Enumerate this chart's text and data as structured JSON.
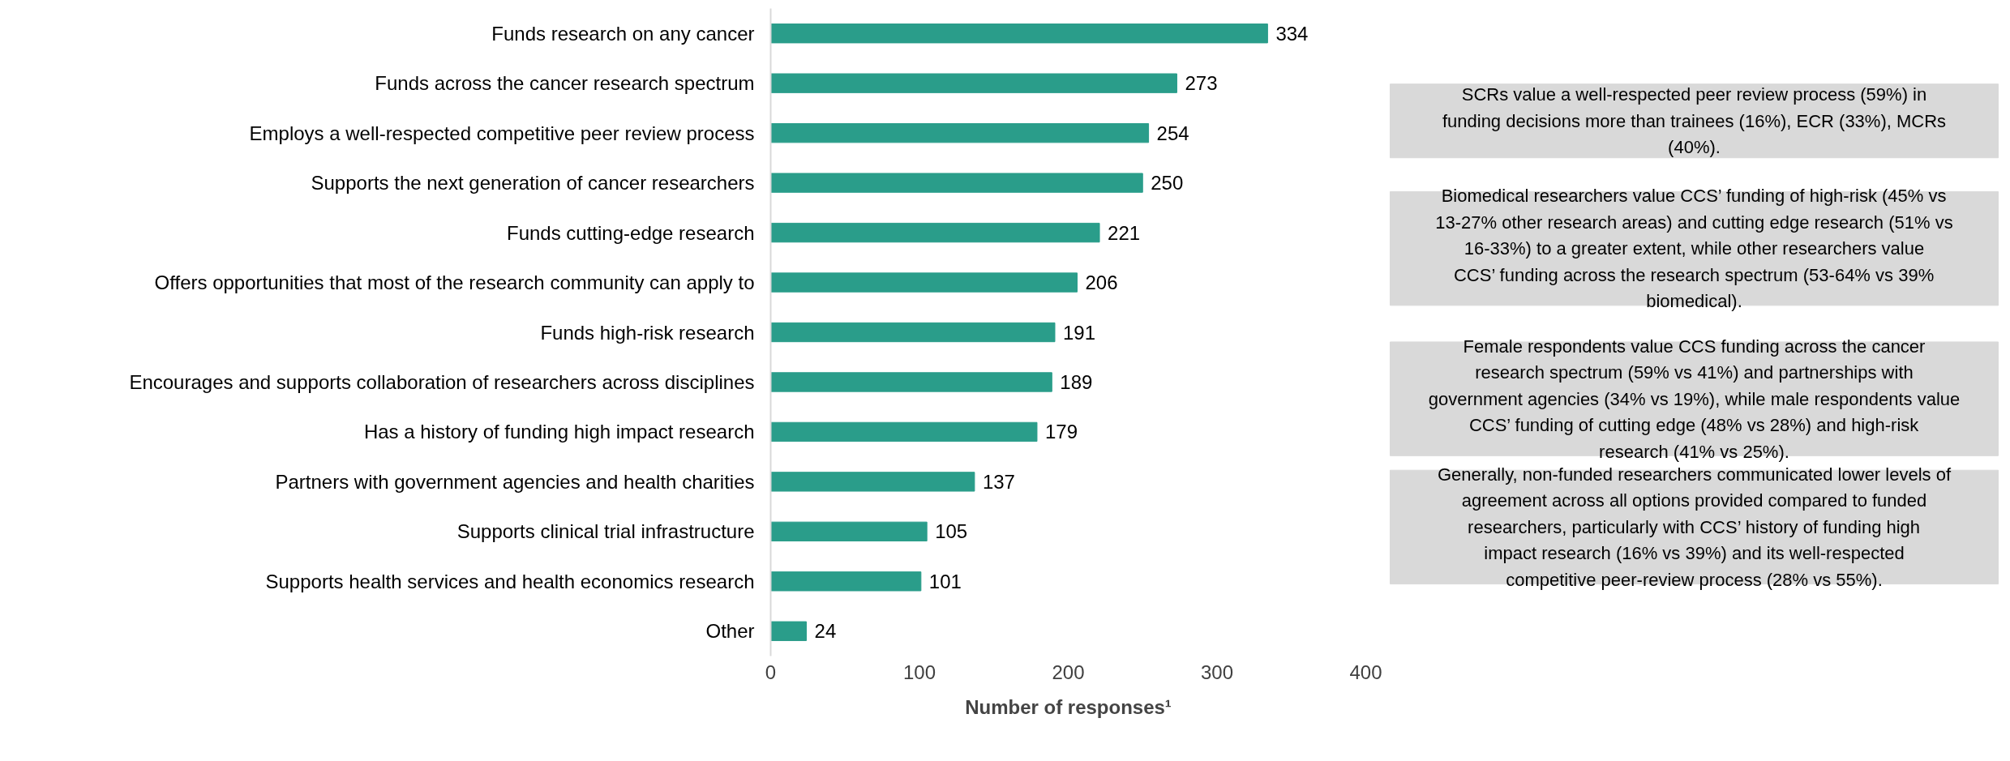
{
  "chart_data": {
    "type": "bar",
    "orientation": "horizontal",
    "xlabel": "Number of responses¹",
    "categories": [
      "Funds research on any cancer",
      "Funds across the cancer research spectrum",
      "Employs a well-respected competitive peer review process",
      "Supports the next generation of cancer researchers",
      "Funds cutting-edge research",
      "Offers opportunities that most of the research community can apply to",
      "Funds high-risk research",
      "Encourages and supports collaboration of researchers across disciplines",
      "Has a history of funding high impact research",
      "Partners with government agencies and health charities",
      "Supports clinical trial infrastructure",
      "Supports health services and health economics research",
      "Other"
    ],
    "values": [
      334,
      273,
      254,
      250,
      221,
      206,
      191,
      189,
      179,
      137,
      105,
      101,
      24
    ],
    "color": "#2a9d8a",
    "data_labels": true,
    "grid": false,
    "xlim": [
      0,
      400
    ],
    "xticks": [
      0,
      100,
      200,
      300,
      400
    ],
    "annotations": [
      "SCRs value a well-respected peer review process (59%) in funding decisions more than trainees (16%), ECR (33%), MCRs (40%).",
      "Biomedical researchers value CCS’ funding of high-risk (45% vs 13-27% other research areas) and cutting edge research (51% vs 16-33%) to a greater extent, while other researchers value CCS’ funding across the research spectrum (53-64% vs 39% biomedical).",
      "Female respondents value CCS funding across the cancer research spectrum (59% vs 41%) and partnerships with government agencies (34% vs 19%), while male respondents value CCS’ funding of cutting edge (48% vs 28%) and high-risk research (41% vs 25%).",
      "Generally, non-funded researchers communicated lower levels of agreement across all options provided compared to funded researchers, particularly with CCS’ history of funding high impact research (16% vs 39%) and its well-respected competitive peer-review process (28% vs 55%)."
    ]
  }
}
